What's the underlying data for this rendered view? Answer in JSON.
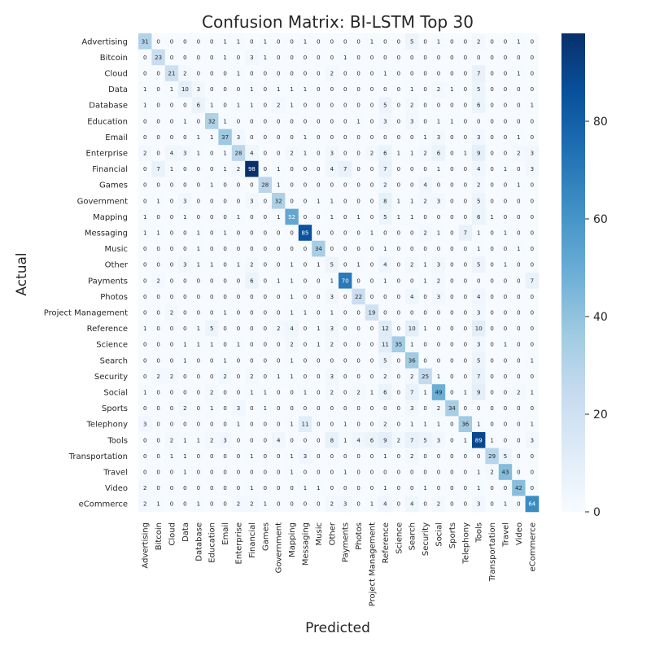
{
  "chart_data": {
    "type": "heatmap",
    "title": "Confusion Matrix: BI-LSTM Top 30",
    "xlabel": "Predicted",
    "ylabel": "Actual",
    "labels": [
      "Advertising",
      "Bitcoin",
      "Cloud",
      "Data",
      "Database",
      "Education",
      "Email",
      "Enterprise",
      "Financial",
      "Games",
      "Government",
      "Mapping",
      "Messaging",
      "Music",
      "Other",
      "Payments",
      "Photos",
      "Project Management",
      "Reference",
      "Science",
      "Search",
      "Security",
      "Social",
      "Sports",
      "Telephony",
      "Tools",
      "Transportation",
      "Travel",
      "Video",
      "eCommerce"
    ],
    "matrix": [
      [
        31,
        0,
        0,
        0,
        0,
        0,
        1,
        1,
        0,
        1,
        0,
        0,
        1,
        0,
        0,
        0,
        0,
        1,
        0,
        0,
        5,
        0,
        1,
        0,
        0,
        2,
        0,
        0,
        1,
        0
      ],
      [
        0,
        23,
        0,
        0,
        0,
        0,
        1,
        0,
        3,
        1,
        0,
        0,
        0,
        0,
        0,
        1,
        0,
        0,
        0,
        0,
        0,
        0,
        0,
        0,
        0,
        0,
        0,
        0,
        0,
        0
      ],
      [
        0,
        0,
        21,
        2,
        0,
        0,
        0,
        1,
        0,
        0,
        0,
        0,
        0,
        0,
        2,
        0,
        0,
        0,
        1,
        0,
        0,
        0,
        0,
        0,
        0,
        7,
        0,
        0,
        1,
        0
      ],
      [
        1,
        0,
        1,
        10,
        3,
        0,
        0,
        0,
        1,
        0,
        1,
        1,
        1,
        0,
        0,
        0,
        0,
        0,
        0,
        0,
        1,
        0,
        2,
        1,
        0,
        5,
        0,
        0,
        0,
        0
      ],
      [
        1,
        0,
        0,
        0,
        6,
        1,
        0,
        1,
        1,
        0,
        2,
        1,
        0,
        0,
        0,
        0,
        0,
        0,
        5,
        0,
        2,
        0,
        0,
        0,
        0,
        6,
        0,
        0,
        0,
        1
      ],
      [
        0,
        0,
        0,
        1,
        0,
        32,
        1,
        0,
        0,
        0,
        0,
        0,
        0,
        0,
        0,
        0,
        1,
        0,
        3,
        0,
        3,
        0,
        1,
        1,
        0,
        0,
        0,
        0,
        0,
        0
      ],
      [
        0,
        0,
        0,
        0,
        1,
        1,
        37,
        3,
        0,
        0,
        0,
        0,
        1,
        0,
        0,
        0,
        0,
        0,
        0,
        0,
        0,
        1,
        3,
        0,
        0,
        3,
        0,
        0,
        1,
        0
      ],
      [
        2,
        0,
        4,
        3,
        1,
        0,
        1,
        28,
        4,
        0,
        0,
        2,
        1,
        0,
        3,
        0,
        0,
        2,
        6,
        1,
        1,
        2,
        6,
        0,
        1,
        9,
        0,
        0,
        2,
        3
      ],
      [
        0,
        7,
        1,
        0,
        0,
        0,
        1,
        2,
        98,
        0,
        1,
        0,
        0,
        0,
        4,
        7,
        0,
        0,
        7,
        0,
        0,
        0,
        1,
        0,
        0,
        4,
        0,
        1,
        0,
        3
      ],
      [
        0,
        0,
        0,
        0,
        0,
        1,
        0,
        0,
        0,
        28,
        1,
        0,
        0,
        0,
        0,
        0,
        0,
        0,
        2,
        0,
        0,
        4,
        0,
        0,
        0,
        2,
        0,
        0,
        1,
        0
      ],
      [
        0,
        1,
        0,
        3,
        0,
        0,
        0,
        0,
        3,
        0,
        32,
        0,
        0,
        1,
        1,
        0,
        0,
        0,
        8,
        1,
        1,
        2,
        3,
        0,
        0,
        5,
        0,
        0,
        0,
        0
      ],
      [
        1,
        0,
        0,
        1,
        0,
        0,
        0,
        1,
        0,
        0,
        1,
        52,
        0,
        0,
        1,
        0,
        1,
        0,
        5,
        1,
        1,
        0,
        0,
        0,
        0,
        6,
        1,
        0,
        0,
        0
      ],
      [
        1,
        1,
        0,
        0,
        1,
        0,
        1,
        0,
        0,
        0,
        0,
        0,
        85,
        0,
        0,
        0,
        0,
        1,
        0,
        0,
        0,
        2,
        1,
        0,
        7,
        1,
        0,
        1,
        0,
        0
      ],
      [
        0,
        0,
        0,
        0,
        1,
        0,
        0,
        0,
        0,
        0,
        0,
        0,
        0,
        34,
        0,
        0,
        0,
        0,
        1,
        0,
        0,
        0,
        0,
        0,
        0,
        1,
        0,
        0,
        1,
        0
      ],
      [
        0,
        0,
        0,
        3,
        1,
        1,
        0,
        1,
        2,
        0,
        0,
        1,
        0,
        1,
        5,
        0,
        1,
        0,
        4,
        0,
        2,
        1,
        3,
        0,
        0,
        5,
        0,
        1,
        0,
        0
      ],
      [
        0,
        2,
        0,
        0,
        0,
        0,
        0,
        0,
        6,
        0,
        1,
        1,
        0,
        0,
        1,
        70,
        0,
        0,
        1,
        0,
        0,
        1,
        2,
        0,
        0,
        0,
        0,
        0,
        0,
        7
      ],
      [
        0,
        0,
        0,
        0,
        0,
        0,
        0,
        0,
        0,
        0,
        0,
        1,
        0,
        0,
        3,
        0,
        22,
        0,
        0,
        0,
        4,
        0,
        3,
        0,
        0,
        4,
        0,
        0,
        0,
        0
      ],
      [
        0,
        0,
        2,
        0,
        0,
        0,
        1,
        0,
        0,
        0,
        0,
        1,
        1,
        0,
        1,
        0,
        0,
        19,
        0,
        0,
        0,
        0,
        0,
        0,
        0,
        3,
        0,
        0,
        0,
        0
      ],
      [
        1,
        0,
        0,
        0,
        1,
        5,
        0,
        0,
        0,
        0,
        2,
        4,
        0,
        1,
        3,
        0,
        0,
        0,
        12,
        0,
        10,
        1,
        0,
        0,
        0,
        10,
        0,
        0,
        0,
        0
      ],
      [
        0,
        0,
        0,
        1,
        1,
        1,
        0,
        1,
        0,
        0,
        0,
        2,
        0,
        1,
        2,
        0,
        0,
        0,
        11,
        35,
        1,
        0,
        0,
        0,
        0,
        3,
        0,
        1,
        0,
        0
      ],
      [
        0,
        0,
        0,
        1,
        0,
        0,
        1,
        0,
        0,
        0,
        0,
        1,
        0,
        0,
        0,
        0,
        0,
        0,
        5,
        0,
        36,
        0,
        0,
        0,
        0,
        5,
        0,
        0,
        0,
        1
      ],
      [
        0,
        2,
        2,
        0,
        0,
        0,
        2,
        0,
        2,
        0,
        1,
        1,
        0,
        0,
        3,
        0,
        0,
        0,
        2,
        0,
        2,
        25,
        1,
        0,
        0,
        7,
        0,
        0,
        0,
        0
      ],
      [
        1,
        0,
        0,
        0,
        0,
        2,
        0,
        0,
        1,
        1,
        0,
        0,
        1,
        0,
        2,
        0,
        2,
        1,
        6,
        0,
        7,
        1,
        49,
        0,
        1,
        9,
        0,
        0,
        2,
        1
      ],
      [
        0,
        0,
        0,
        2,
        0,
        1,
        0,
        3,
        0,
        1,
        0,
        0,
        0,
        0,
        0,
        0,
        0,
        0,
        0,
        0,
        3,
        0,
        2,
        34,
        0,
        0,
        0,
        0,
        0,
        0
      ],
      [
        3,
        0,
        0,
        0,
        0,
        0,
        0,
        1,
        0,
        0,
        0,
        1,
        11,
        0,
        0,
        1,
        0,
        0,
        2,
        0,
        1,
        1,
        1,
        0,
        36,
        1,
        0,
        0,
        0,
        1
      ],
      [
        0,
        0,
        2,
        1,
        1,
        2,
        3,
        0,
        0,
        0,
        4,
        0,
        0,
        0,
        8,
        1,
        4,
        6,
        9,
        2,
        7,
        5,
        3,
        0,
        1,
        89,
        1,
        0,
        0,
        3
      ],
      [
        0,
        0,
        1,
        1,
        0,
        0,
        0,
        0,
        1,
        0,
        0,
        1,
        3,
        0,
        0,
        0,
        0,
        0,
        1,
        0,
        2,
        0,
        0,
        0,
        0,
        0,
        29,
        5,
        0,
        0
      ],
      [
        0,
        0,
        0,
        1,
        0,
        0,
        0,
        0,
        0,
        0,
        0,
        1,
        0,
        0,
        0,
        1,
        0,
        0,
        0,
        0,
        0,
        0,
        0,
        0,
        0,
        1,
        2,
        43,
        0,
        0
      ],
      [
        2,
        0,
        0,
        0,
        0,
        0,
        0,
        0,
        1,
        0,
        0,
        0,
        1,
        1,
        0,
        0,
        0,
        0,
        1,
        0,
        0,
        1,
        0,
        0,
        0,
        1,
        0,
        0,
        42,
        0
      ],
      [
        2,
        1,
        0,
        0,
        1,
        0,
        0,
        2,
        2,
        1,
        0,
        0,
        0,
        0,
        2,
        3,
        0,
        1,
        4,
        0,
        4,
        0,
        2,
        0,
        0,
        3,
        0,
        1,
        0,
        64
      ]
    ],
    "colorbar": {
      "min": 0,
      "max": 98,
      "ticks": [
        0,
        20,
        40,
        60,
        80
      ]
    },
    "colormap": "Blues",
    "colors": {
      "low": "#f7fbff",
      "high": "#08306b"
    },
    "grid": false
  }
}
